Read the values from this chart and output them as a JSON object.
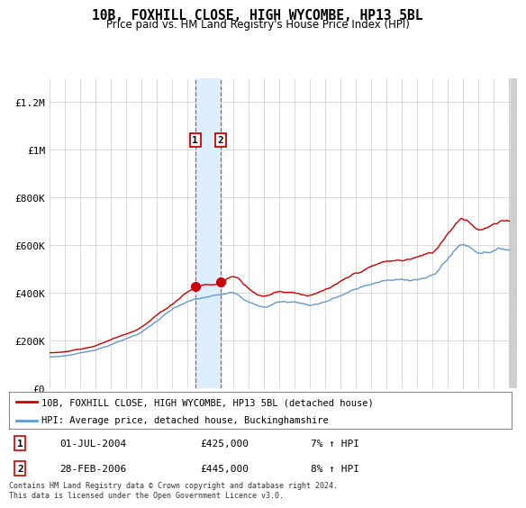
{
  "title": "10B, FOXHILL CLOSE, HIGH WYCOMBE, HP13 5BL",
  "subtitle": "Price paid vs. HM Land Registry's House Price Index (HPI)",
  "red_label": "10B, FOXHILL CLOSE, HIGH WYCOMBE, HP13 5BL (detached house)",
  "blue_label": "HPI: Average price, detached house, Buckinghamshire",
  "sale1_date": "01-JUL-2004",
  "sale1_price": 425000,
  "sale1_pct": "7%",
  "sale2_date": "28-FEB-2006",
  "sale2_price": 445000,
  "sale2_pct": "8%",
  "footer": "Contains HM Land Registry data © Crown copyright and database right 2024.\nThis data is licensed under the Open Government Licence v3.0.",
  "ylim": [
    0,
    1300000
  ],
  "yticks": [
    0,
    200000,
    400000,
    600000,
    800000,
    1000000,
    1200000
  ],
  "ytick_labels": [
    "£0",
    "£200K",
    "£400K",
    "£600K",
    "£800K",
    "£1M",
    "£1.2M"
  ],
  "red_color": "#cc0000",
  "blue_color": "#6699cc",
  "marker1_x": 2004.5,
  "marker2_x": 2006.17,
  "background_color": "#ffffff",
  "grid_color": "#cccccc",
  "sale_box_color": "#cc0000",
  "highlight_color": "#ddeeff",
  "hatch_color": "#e0e0e0"
}
